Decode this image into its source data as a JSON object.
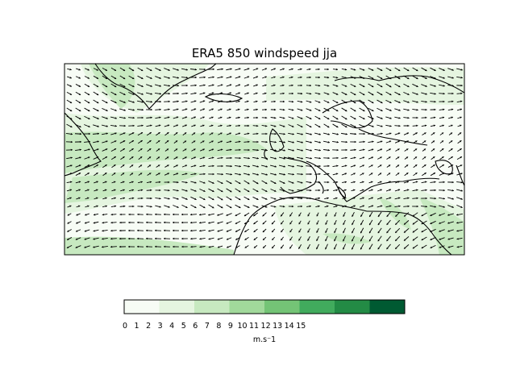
{
  "title": "ERA5 850 windspeed jja",
  "colorbar": {
    "unit_label": "m.s⁻1",
    "tick_labels": [
      "0",
      "1",
      "2",
      "3",
      "4",
      "5",
      "6",
      "7",
      "8",
      "9",
      "10",
      "11",
      "12",
      "13",
      "14",
      "15"
    ],
    "levels": [
      0,
      3,
      6,
      9,
      12,
      15,
      18,
      21,
      24
    ],
    "colors": [
      "#f7fcf5",
      "#e5f5e0",
      "#c7e9c0",
      "#a1d99b",
      "#74c476",
      "#41ab5d",
      "#238b45",
      "#005a32"
    ]
  },
  "map": {
    "land_outline_color": "#000000",
    "arrow_color": "#000000",
    "frame_color": "#000000"
  }
}
